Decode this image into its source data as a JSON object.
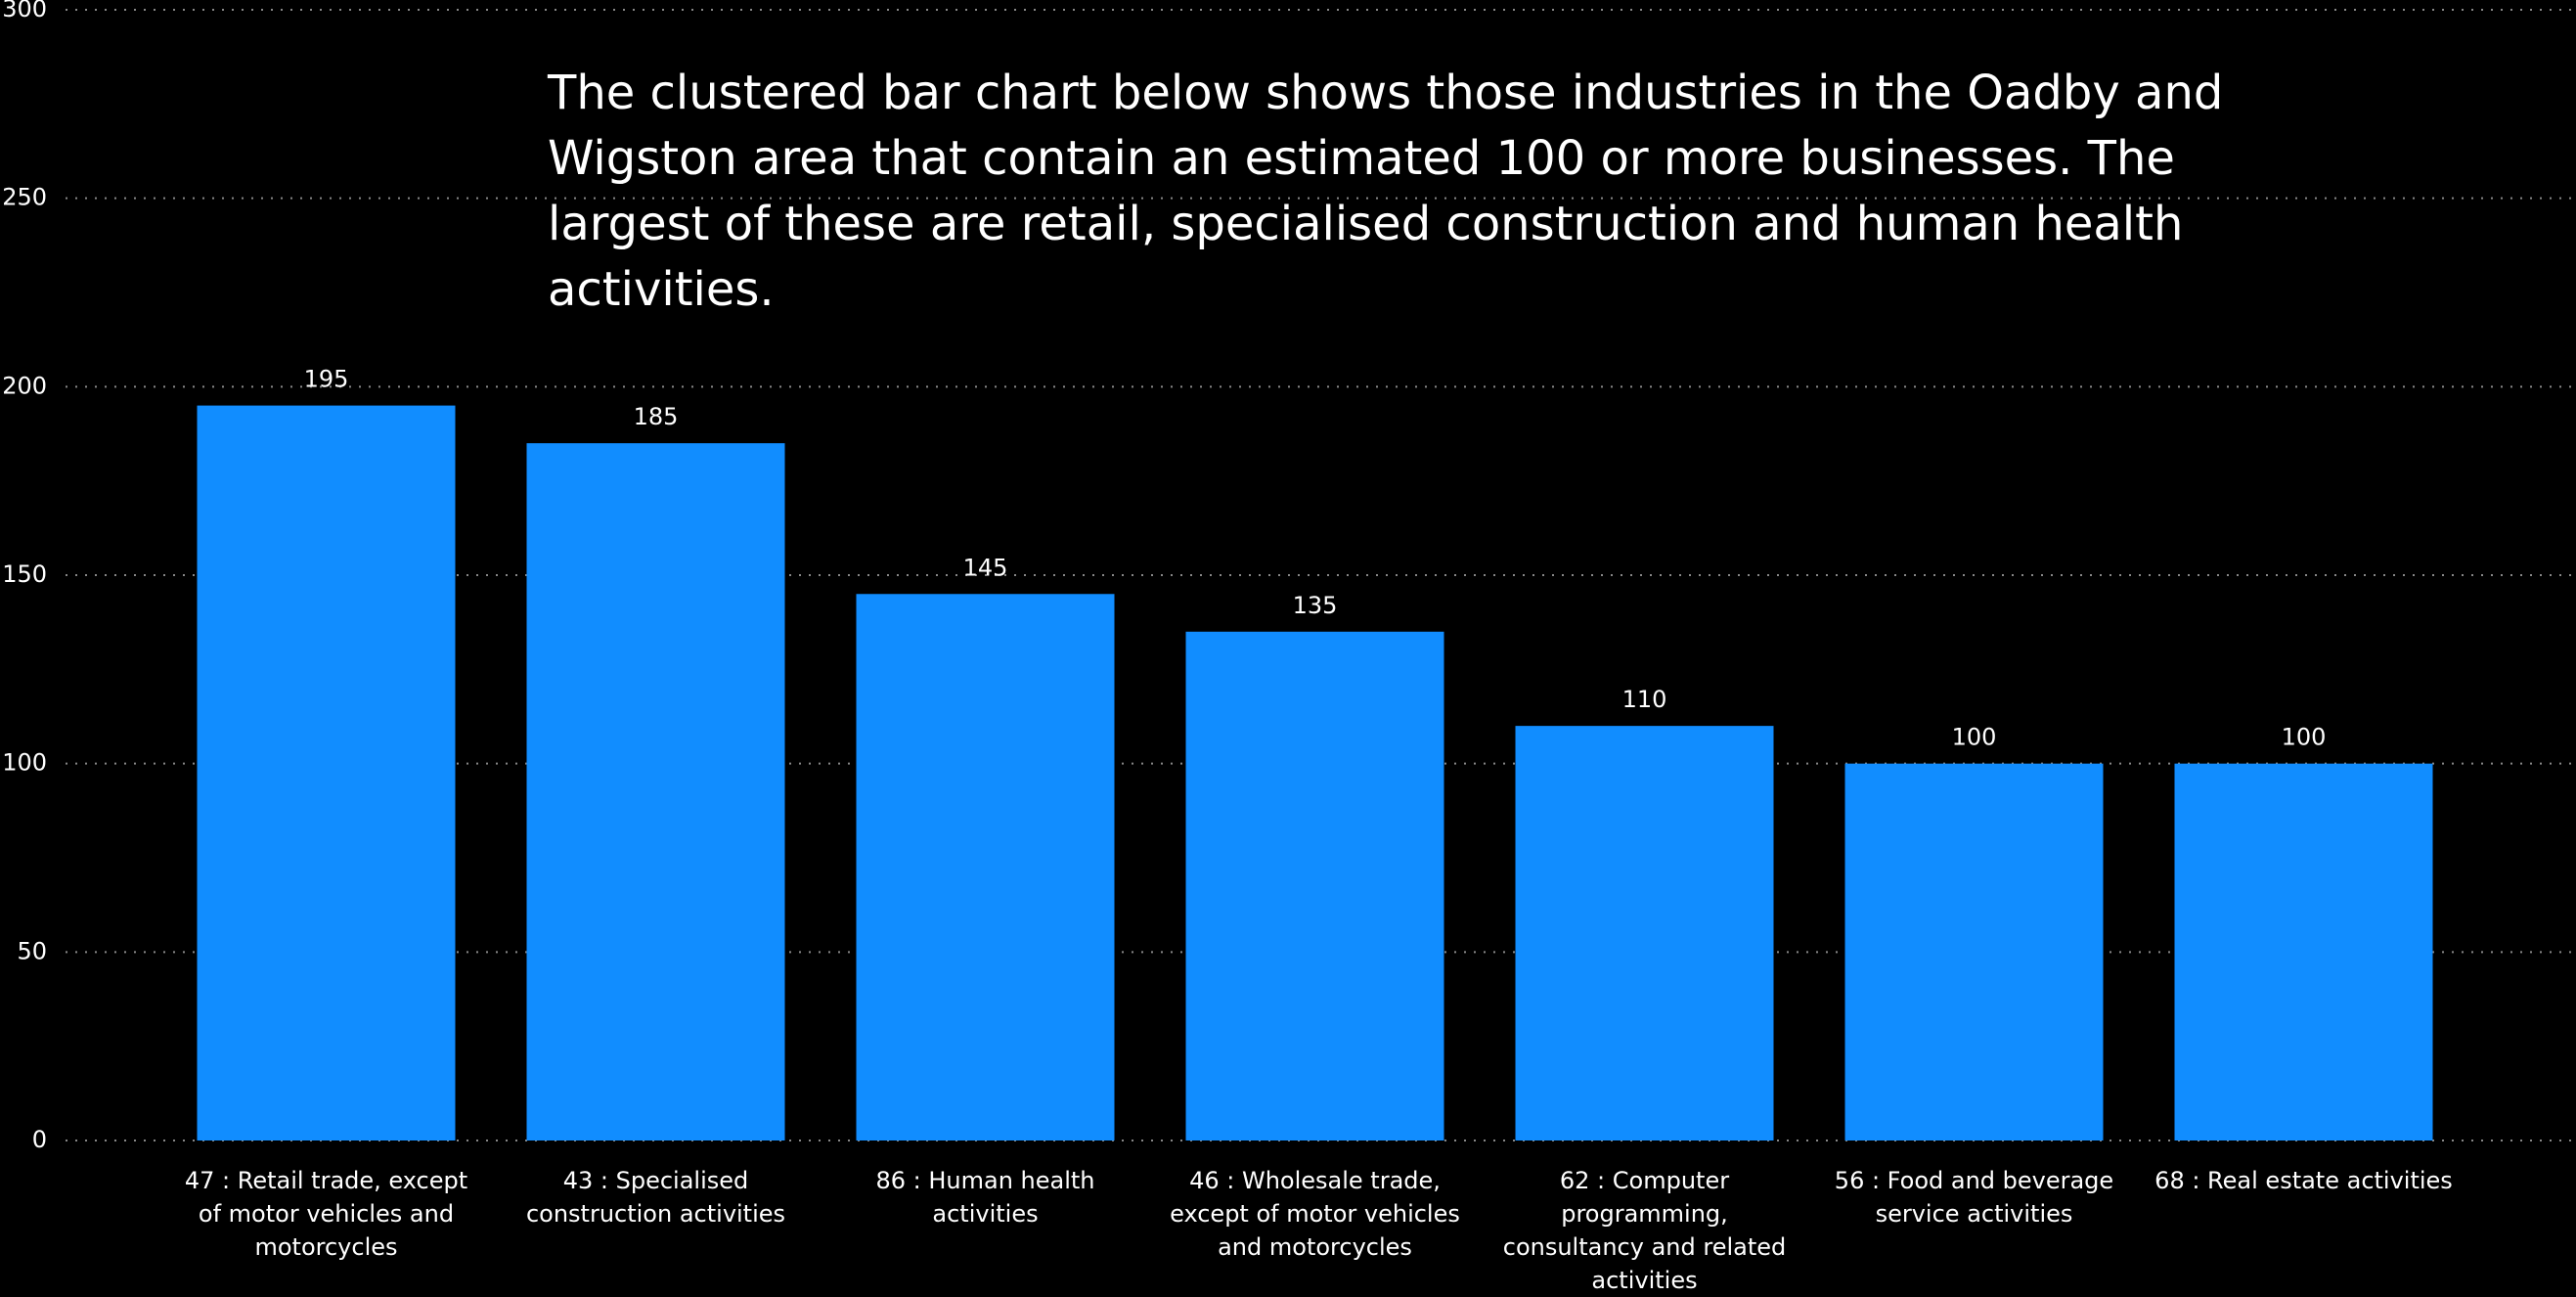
{
  "chart_data": {
    "type": "bar",
    "annotation": "The clustered bar chart below shows those industries in the Oadby and Wigston area that contain an estimated 100 or more businesses.  The largest of these are retail, specialised construction and human health activities.",
    "categories": [
      "47 : Retail trade, except of motor vehicles and motorcycles",
      "43 : Specialised construction activities",
      "86 : Human health activities",
      "46 : Wholesale trade, except of motor vehicles and motorcycles",
      "62 : Computer programming, consultancy and related activities",
      "56 : Food and beverage service activities",
      "68 : Real estate activities"
    ],
    "values": [
      195,
      185,
      145,
      135,
      110,
      100,
      100
    ],
    "color": "#118dff",
    "ylim": [
      0,
      300
    ],
    "yticks": [
      0,
      50,
      100,
      150,
      200,
      250,
      300
    ],
    "grid": true
  }
}
